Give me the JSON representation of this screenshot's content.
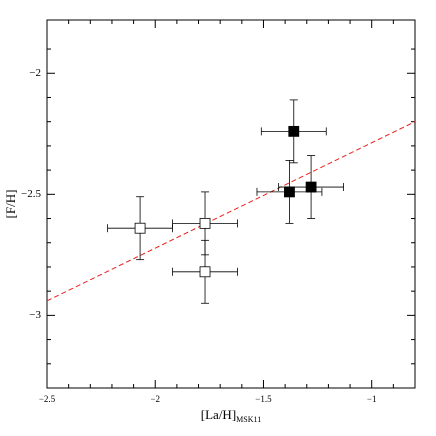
{
  "chart_data": {
    "type": "scatter",
    "xlabel": "[La/H]",
    "xlabel_sub": "MSK11",
    "ylabel": "[F/H]",
    "xlim": [
      -2.5,
      -0.8
    ],
    "ylim": [
      -3.3,
      -1.78
    ],
    "xticks": [
      {
        "value": -2.5,
        "label": "−2.5"
      },
      {
        "value": -2,
        "label": "−2"
      },
      {
        "value": -1.5,
        "label": "−1.5"
      },
      {
        "value": -1,
        "label": "−1"
      }
    ],
    "yticks": [
      {
        "value": -3,
        "label": "−3"
      },
      {
        "value": -2.5,
        "label": "−2.5"
      },
      {
        "value": -2,
        "label": "−2"
      }
    ],
    "xminorticks": [
      -2.4,
      -2.3,
      -2.2,
      -2.1,
      -1.9,
      -1.8,
      -1.7,
      -1.6,
      -1.4,
      -1.3,
      -1.2,
      -1.1,
      -0.9
    ],
    "yminorticks": [
      -3.2,
      -3.1,
      -2.9,
      -2.8,
      -2.7,
      -2.6,
      -2.4,
      -2.3,
      -2.2,
      -2.1,
      -1.9
    ],
    "series": [
      {
        "marker": "open",
        "color": "#000000",
        "x": [
          -2.07,
          -1.77,
          -1.77
        ],
        "y": [
          -2.64,
          -2.62,
          -2.82
        ],
        "xerr": [
          0.15,
          0.15,
          0.15
        ],
        "yerr": [
          0.13,
          0.13,
          0.13
        ]
      },
      {
        "marker": "filled",
        "color": "#000000",
        "x": [
          -1.36,
          -1.38,
          -1.28
        ],
        "y": [
          -2.24,
          -2.49,
          -2.47
        ],
        "xerr": [
          0.15,
          0.15,
          0.15
        ],
        "yerr": [
          0.13,
          0.13,
          0.13
        ]
      }
    ],
    "fit": {
      "x": [
        -2.5,
        -0.8
      ],
      "y": [
        -2.94,
        -2.2
      ],
      "color": "#e8201c",
      "dashed": true
    }
  }
}
